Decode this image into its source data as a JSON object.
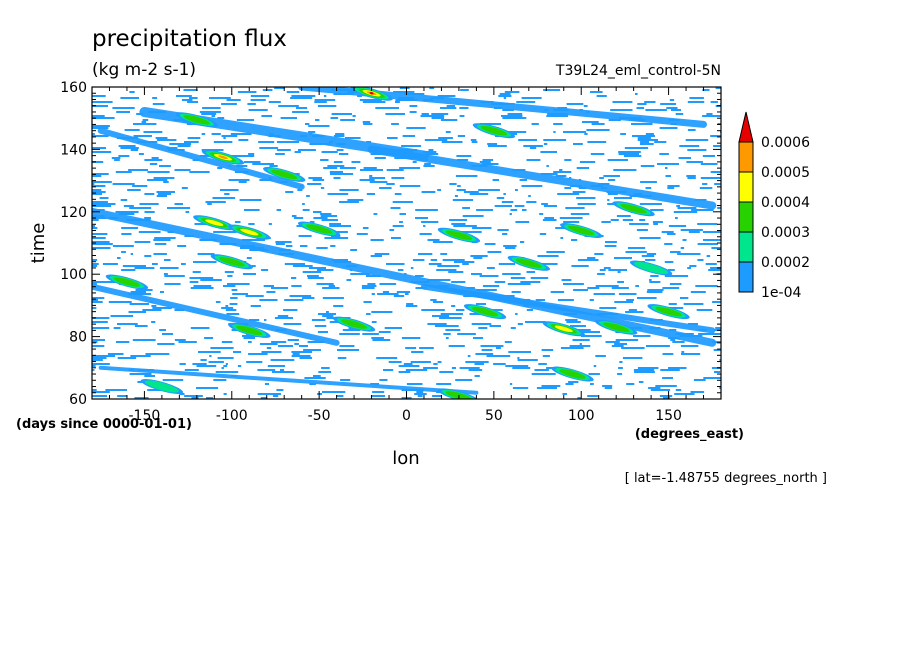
{
  "chart_data": {
    "type": "heatmap",
    "title": "precipitation flux",
    "subtitle": "(kg m-2 s-1)",
    "experiment": "T39L24_eml_control-5N",
    "xlabel": "lon",
    "ylabel": "time",
    "x_units": "(degrees_east)",
    "y_units": "(days since 0000-01-01)",
    "slice_note": "[ lat=-1.48755 degrees_north ]",
    "xlim": [
      -180,
      180
    ],
    "ylim": [
      60,
      160
    ],
    "x_ticks": [
      -150,
      -100,
      -50,
      0,
      50,
      100,
      150
    ],
    "y_ticks": [
      60,
      80,
      100,
      120,
      140,
      160
    ],
    "x_minor_step": 10,
    "y_minor_step": 2,
    "grid": false,
    "colorbar": {
      "levels": [
        "1e-04",
        "0.0002",
        "0.0003",
        "0.0004",
        "0.0005",
        "0.0006"
      ],
      "colors": [
        "#1e9bff",
        "#00e68c",
        "#28d200",
        "#ffff00",
        "#ff9900",
        "#e60000"
      ],
      "extend": "max"
    },
    "features": [
      {
        "lon": -120,
        "time": 149.5,
        "level": 3
      },
      {
        "lon": -20,
        "time": 158,
        "level": 6
      },
      {
        "lon": -105,
        "time": 137.5,
        "level": 5
      },
      {
        "lon": -70,
        "time": 132,
        "level": 3
      },
      {
        "lon": -110,
        "time": 116.5,
        "level": 4
      },
      {
        "lon": -90,
        "time": 113.5,
        "level": 4
      },
      {
        "lon": -50,
        "time": 114.5,
        "level": 3
      },
      {
        "lon": 30,
        "time": 112.5,
        "level": 3
      },
      {
        "lon": 70,
        "time": 103.5,
        "level": 3
      },
      {
        "lon": -100,
        "time": 104,
        "level": 3
      },
      {
        "lon": -160,
        "time": 97.5,
        "level": 3
      },
      {
        "lon": 50,
        "time": 146,
        "level": 3
      },
      {
        "lon": 100,
        "time": 114,
        "level": 3
      },
      {
        "lon": 130,
        "time": 121,
        "level": 3
      },
      {
        "lon": -90,
        "time": 82,
        "level": 3
      },
      {
        "lon": -30,
        "time": 84,
        "level": 3
      },
      {
        "lon": 45,
        "time": 88,
        "level": 3
      },
      {
        "lon": 90,
        "time": 82.5,
        "level": 4
      },
      {
        "lon": 120,
        "time": 83,
        "level": 3
      },
      {
        "lon": 150,
        "time": 88,
        "level": 3
      },
      {
        "lon": 95,
        "time": 68,
        "level": 3
      },
      {
        "lon": 30,
        "time": 61,
        "level": 3
      },
      {
        "lon": 140,
        "time": 102,
        "level": 2
      },
      {
        "lon": -140,
        "time": 64,
        "level": 2
      }
    ]
  }
}
